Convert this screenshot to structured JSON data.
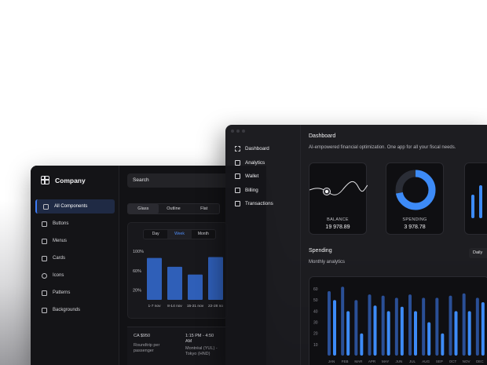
{
  "back_window": {
    "brand": "Company",
    "nav": [
      {
        "label": "All Components",
        "icon": "grid-icon",
        "active": true
      },
      {
        "label": "Buttons",
        "icon": "pointer-icon",
        "active": false
      },
      {
        "label": "Menus",
        "icon": "menu-icon",
        "active": false
      },
      {
        "label": "Cards",
        "icon": "card-icon",
        "active": false
      },
      {
        "label": "Icons",
        "icon": "circle-icon",
        "active": false
      },
      {
        "label": "Patterns",
        "icon": "pattern-icon",
        "active": false
      },
      {
        "label": "Backgrounds",
        "icon": "image-icon",
        "active": false
      }
    ],
    "search_placeholder": "Search",
    "style_tabs": [
      "Glass",
      "Outline",
      "Flat"
    ],
    "period_tabs": [
      "Day",
      "Week",
      "Month"
    ],
    "chart_data": {
      "type": "bar",
      "categories": [
        "1-7 nov",
        "8-14 nov",
        "15-21 nov",
        "22-28 no"
      ],
      "values": [
        86,
        68,
        52,
        88
      ],
      "ytick_labels": [
        "100%",
        "60%",
        "20%"
      ],
      "ylim": [
        0,
        100
      ]
    },
    "flight": {
      "price": "CA $950",
      "trip_line1": "Roundtrip per",
      "trip_line2": "passenger",
      "time": "1:15 PM - 4:50",
      "time2": "AM",
      "route": "Montréal (YUL) -",
      "route2": "Tokyo (HND)"
    }
  },
  "front_window": {
    "nav": [
      {
        "label": "Dashboard",
        "icon": "dashboard-icon"
      },
      {
        "label": "Analytics",
        "icon": "analytics-icon"
      },
      {
        "label": "Wallet",
        "icon": "wallet-icon"
      },
      {
        "label": "Billing",
        "icon": "billing-icon"
      },
      {
        "label": "Transactions",
        "icon": "transactions-icon"
      }
    ],
    "title": "Dashboard",
    "subtitle": "AI-empowered financial optimization. One app for all your fiscal needs.",
    "balance": {
      "label": "BALANCE",
      "value": "19 978.89"
    },
    "spending": {
      "label": "SPENDING",
      "value": "3 978.78",
      "fraction": 0.72
    },
    "spending_section": {
      "title": "Spending",
      "subtitle": "Monthly analytics",
      "period": "Daily"
    },
    "chart_data": {
      "type": "bar",
      "categories": [
        "JAN",
        "FEB",
        "MAR",
        "APR",
        "MAY",
        "JUN",
        "JUL",
        "AUG",
        "SEP",
        "OCT",
        "NOV",
        "DEC"
      ],
      "series": [
        {
          "values": [
            58,
            62,
            50,
            55,
            54,
            52,
            55,
            52,
            52,
            54,
            56,
            52
          ]
        },
        {
          "values": [
            50,
            40,
            20,
            45,
            40,
            44,
            40,
            30,
            20,
            40,
            40,
            48
          ]
        }
      ],
      "ytick_labels": [
        "60",
        "50",
        "40",
        "30",
        "20",
        "10"
      ],
      "ylim": [
        0,
        65
      ]
    },
    "accent": "#3d8bf7"
  }
}
